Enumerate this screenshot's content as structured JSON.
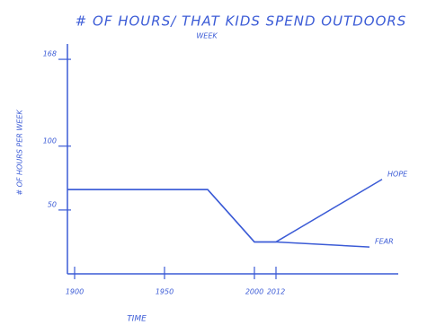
{
  "chart_data": {
    "type": "line",
    "title": "# OF HOURS/ THAT KIDS SPEND OUTDOORS",
    "title_note": "WEEK",
    "y_label": "# OF HOURS PER WEEK",
    "x_label": "TIME",
    "xlim": [
      1896,
      2080
    ],
    "xticks": [
      1900,
      1950,
      2000,
      2012
    ],
    "ylim": [
      0,
      180
    ],
    "yticks": [
      50,
      100,
      168
    ],
    "color": "#3b5bd6",
    "series": [
      {
        "name": "HOPE",
        "x": [
          1896,
          1974,
          2000,
          2012,
          2071
        ],
        "values": [
          66,
          66,
          25,
          25,
          74
        ]
      },
      {
        "name": "FEAR",
        "x": [
          1896,
          1974,
          2000,
          2012,
          2064
        ],
        "values": [
          66,
          66,
          25,
          25,
          21
        ]
      }
    ]
  }
}
